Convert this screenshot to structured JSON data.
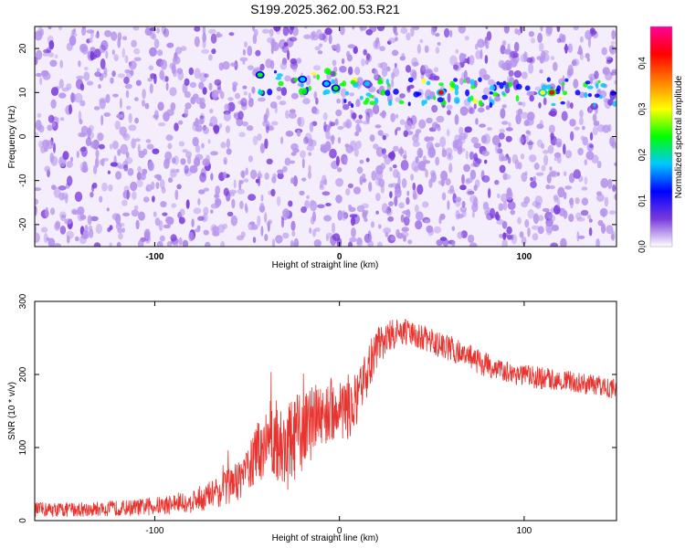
{
  "title": "S199.2025.362.00.53.R21",
  "colors": {
    "signal_line": "#e8332e",
    "axis": "#000000",
    "spectrogram_background": "#f4eefc",
    "spectrogram_blob_light": "#b694ec",
    "spectrogram_blob_dark": "#7a3cdb"
  },
  "chart_data": [
    {
      "type": "heatmap",
      "title": "S199.2025.362.00.53.R21",
      "xlabel": "Height of straight line (km)",
      "ylabel": "Frequency (Hz)",
      "xlim": [
        -165,
        150
      ],
      "ylim": [
        -25,
        25
      ],
      "x_ticks": [
        -100,
        0,
        100
      ],
      "x_tick_labels": [
        "-100",
        "0",
        "100"
      ],
      "y_ticks": [
        -20,
        -10,
        0,
        10,
        20
      ],
      "y_tick_labels": [
        "-20",
        "-10",
        "0",
        "10",
        "20"
      ],
      "colorbar": {
        "label": "Normalized spectral amplitude",
        "range": [
          0,
          0.48
        ],
        "ticks": [
          0.0,
          0.1,
          0.2,
          0.3,
          0.4
        ],
        "tick_labels": [
          "0.0",
          "0.1",
          "0.2",
          "0.3",
          "0.4"
        ],
        "colormap": [
          "#ffffff",
          "#7a3cdb",
          "#0000ff",
          "#00c8ff",
          "#00ff00",
          "#ffff00",
          "#ff8000",
          "#ff0000",
          "#ff0099"
        ]
      },
      "background_amplitude": [
        0.0,
        0.08
      ],
      "signal_band": {
        "frequency_hz": 10,
        "x_range": [
          -45,
          150
        ],
        "typical_amplitude": 0.2
      },
      "peaks": [
        {
          "x": -43,
          "y": 14,
          "amplitude": 0.22
        },
        {
          "x": -20,
          "y": 13,
          "amplitude": 0.18
        },
        {
          "x": -7,
          "y": 12,
          "amplitude": 0.2
        },
        {
          "x": -2,
          "y": 11,
          "amplitude": 0.23
        },
        {
          "x": 15,
          "y": 12,
          "amplitude": 0.15
        },
        {
          "x": 55,
          "y": 10,
          "amplitude": 0.4
        },
        {
          "x": 110,
          "y": 10,
          "amplitude": 0.32
        },
        {
          "x": 115,
          "y": 10,
          "amplitude": 0.42
        }
      ]
    },
    {
      "type": "line",
      "xlabel": "Height of straight line (km)",
      "ylabel": "SNR (10 * v/v)",
      "xlim": [
        -165,
        150
      ],
      "ylim": [
        0,
        300
      ],
      "x_ticks": [
        -100,
        0,
        100
      ],
      "x_tick_labels": [
        "-100",
        "0",
        "100"
      ],
      "y_ticks": [
        0,
        100,
        200,
        300
      ],
      "y_tick_labels": [
        "0",
        "100",
        "200",
        "300"
      ],
      "series": [
        {
          "x": [
            -165,
            -150,
            -130,
            -110,
            -95,
            -85,
            -75,
            -65,
            -55,
            -50,
            -45,
            -40,
            -35,
            -30,
            -25,
            -20,
            -15,
            -10,
            -5,
            0,
            5,
            10,
            15,
            20,
            25,
            30,
            35,
            40,
            50,
            60,
            70,
            80,
            90,
            100,
            110,
            120,
            130,
            140,
            150
          ],
          "values": [
            15,
            15,
            16,
            18,
            21,
            25,
            30,
            40,
            55,
            70,
            90,
            110,
            115,
            95,
            110,
            120,
            135,
            145,
            150,
            155,
            155,
            160,
            205,
            235,
            250,
            255,
            258,
            255,
            245,
            235,
            225,
            212,
            205,
            198,
            195,
            192,
            188,
            185,
            180
          ],
          "noise_amplitude": [
            10,
            10,
            10,
            11,
            13,
            15,
            18,
            22,
            28,
            32,
            40,
            50,
            55,
            60,
            60,
            55,
            50,
            48,
            45,
            45,
            45,
            40,
            35,
            28,
            24,
            20,
            18,
            18,
            18,
            18,
            17,
            17,
            16,
            15,
            15,
            14,
            14,
            14,
            14
          ]
        }
      ]
    }
  ]
}
